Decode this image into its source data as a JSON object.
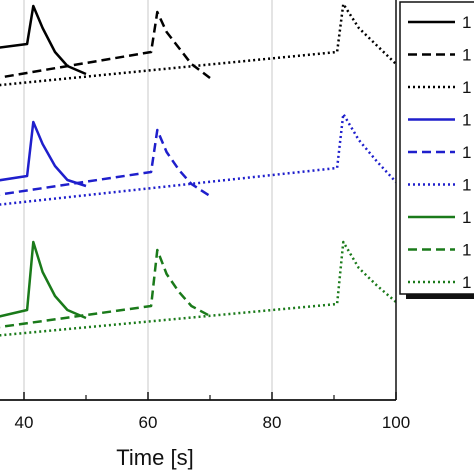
{
  "chart_data": {
    "type": "line",
    "xlabel": "Time [s]",
    "x_ticks": [
      40,
      60,
      80,
      100
    ],
    "xlim": [
      28,
      100
    ],
    "ylim": [
      0,
      100
    ],
    "grid": "vertical",
    "legend_position": "right",
    "series": [
      {
        "name": "1",
        "color": "#000000",
        "dash": "solid",
        "x": [
          28,
          40.5,
          41.5,
          43,
          45,
          47,
          50
        ],
        "y": [
          86.5,
          89,
          98.5,
          93,
          87,
          83.5,
          81.5
        ]
      },
      {
        "name": "1",
        "color": "#000000",
        "dash": "dashed",
        "x": [
          28,
          60.5,
          61.5,
          63,
          65,
          67,
          70
        ],
        "y": [
          78.5,
          87,
          97,
          92,
          88,
          84,
          80.5
        ]
      },
      {
        "name": "1",
        "color": "#000000",
        "dash": "dotted",
        "x": [
          28,
          90.5,
          91.5,
          94,
          97,
          100
        ],
        "y": [
          77.5,
          87,
          99,
          93,
          88.5,
          84
        ]
      },
      {
        "name": "1",
        "color": "#1f1fcc",
        "dash": "solid",
        "x": [
          28,
          40.5,
          41.5,
          43,
          45,
          47,
          50
        ],
        "y": [
          53,
          56,
          69.5,
          64,
          58.5,
          55,
          53.5
        ]
      },
      {
        "name": "1",
        "color": "#1f1fcc",
        "dash": "dashed",
        "x": [
          28,
          60.5,
          61.5,
          63,
          65,
          67,
          70
        ],
        "y": [
          49.5,
          57,
          67.5,
          62,
          57.5,
          54,
          51
        ]
      },
      {
        "name": "1",
        "color": "#1f1fcc",
        "dash": "dotted",
        "x": [
          28,
          90.5,
          91.5,
          94,
          97,
          100
        ],
        "y": [
          47.5,
          58,
          71.5,
          65,
          59.5,
          54.5
        ]
      },
      {
        "name": "1",
        "color": "#1a7a1a",
        "dash": "solid",
        "x": [
          28,
          40.5,
          41.5,
          43,
          45,
          47,
          50
        ],
        "y": [
          18,
          22.5,
          39.5,
          32,
          26,
          22.5,
          20.5
        ]
      },
      {
        "name": "1",
        "color": "#1a7a1a",
        "dash": "dashed",
        "x": [
          28,
          60.5,
          61.5,
          63,
          65,
          67,
          70
        ],
        "y": [
          16.5,
          23.5,
          37.5,
          31.5,
          27,
          23.5,
          21
        ]
      },
      {
        "name": "1",
        "color": "#1a7a1a",
        "dash": "dotted",
        "x": [
          28,
          90.5,
          91.5,
          94,
          97,
          100
        ],
        "y": [
          15,
          24,
          39.5,
          33,
          28.5,
          24.5
        ]
      }
    ]
  }
}
